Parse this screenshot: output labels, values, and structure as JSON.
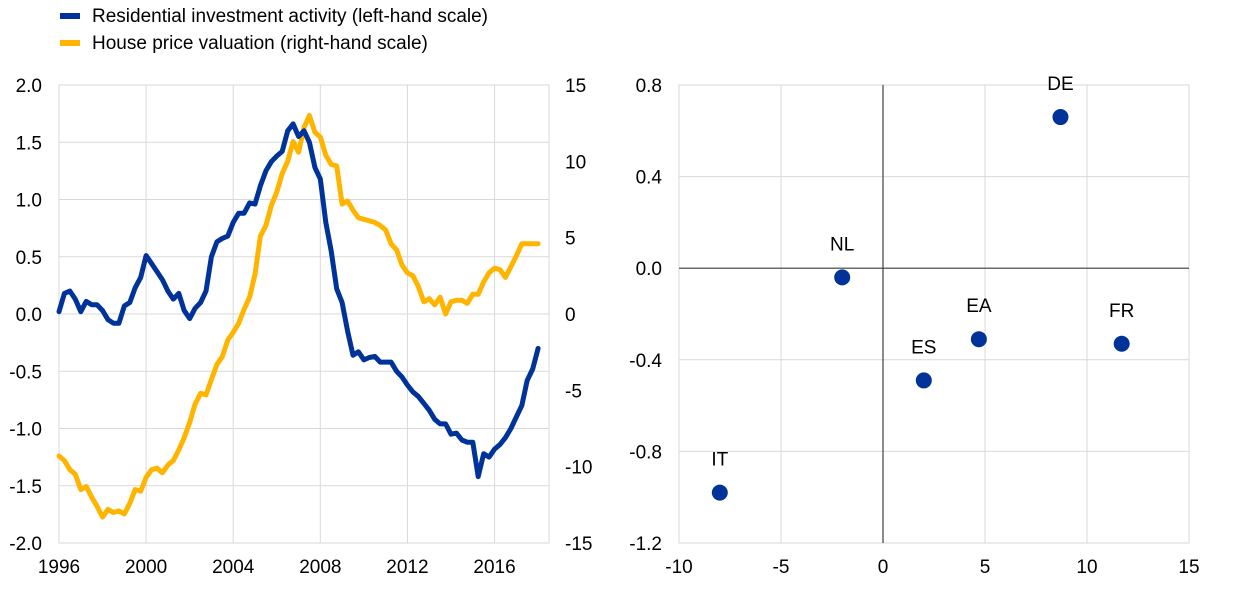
{
  "colors": {
    "blue": "#003399",
    "yellow": "#FFB400",
    "grid": "#d9d9d9",
    "axis": "#404040"
  },
  "chart_data": [
    {
      "type": "line",
      "legend_placement": "top-left",
      "grid": true,
      "legend": [
        {
          "label": "Residential investment activity (left-hand scale)",
          "color": "#003399"
        },
        {
          "label": "House price valuation (right-hand scale)",
          "color": "#FFB400"
        }
      ],
      "x_ticks": [
        "1996",
        "2000",
        "2004",
        "2008",
        "2012",
        "2016"
      ],
      "y_left_ticks": [
        "2.0",
        "1.5",
        "1.0",
        "0.5",
        "0.0",
        "-0.5",
        "-1.0",
        "-1.5",
        "-2.0"
      ],
      "y_right_ticks": [
        "15",
        "10",
        "5",
        "0",
        "-5",
        "-10",
        "-15"
      ],
      "xlim": [
        1996,
        2018.5
      ],
      "ylim_left": [
        -2.0,
        2.0
      ],
      "ylim_right": [
        -15,
        15
      ],
      "series": [
        {
          "name": "Residential investment activity (left-hand scale)",
          "axis": "left",
          "color": "#003399",
          "x": [
            1996.0,
            1996.25,
            1996.5,
            1996.75,
            1997.0,
            1997.25,
            1997.5,
            1997.75,
            1998.0,
            1998.25,
            1998.5,
            1998.75,
            1999.0,
            1999.25,
            1999.5,
            1999.75,
            2000.0,
            2000.25,
            2000.5,
            2000.75,
            2001.0,
            2001.25,
            2001.5,
            2001.75,
            2002.0,
            2002.25,
            2002.5,
            2002.75,
            2003.0,
            2003.25,
            2003.5,
            2003.75,
            2004.0,
            2004.25,
            2004.5,
            2004.75,
            2005.0,
            2005.25,
            2005.5,
            2005.75,
            2006.0,
            2006.25,
            2006.5,
            2006.75,
            2007.0,
            2007.25,
            2007.5,
            2007.75,
            2008.0,
            2008.25,
            2008.5,
            2008.75,
            2009.0,
            2009.25,
            2009.5,
            2009.75,
            2010.0,
            2010.25,
            2010.5,
            2010.75,
            2011.0,
            2011.25,
            2011.5,
            2011.75,
            2012.0,
            2012.25,
            2012.5,
            2012.75,
            2013.0,
            2013.25,
            2013.5,
            2013.75,
            2014.0,
            2014.25,
            2014.5,
            2014.75,
            2015.0,
            2015.25,
            2015.5,
            2015.75,
            2016.0,
            2016.25,
            2016.5,
            2016.75,
            2017.0,
            2017.25,
            2017.5,
            2017.75,
            2018.0
          ],
          "values": [
            0.02,
            0.18,
            0.2,
            0.13,
            0.02,
            0.11,
            0.08,
            0.08,
            0.03,
            -0.05,
            -0.08,
            -0.08,
            0.07,
            0.1,
            0.23,
            0.32,
            0.51,
            0.44,
            0.37,
            0.3,
            0.2,
            0.13,
            0.18,
            0.03,
            -0.04,
            0.05,
            0.1,
            0.2,
            0.5,
            0.63,
            0.66,
            0.68,
            0.8,
            0.88,
            0.88,
            0.97,
            0.96,
            1.12,
            1.25,
            1.33,
            1.38,
            1.42,
            1.6,
            1.66,
            1.55,
            1.6,
            1.5,
            1.28,
            1.18,
            0.8,
            0.55,
            0.22,
            0.1,
            -0.15,
            -0.36,
            -0.33,
            -0.4,
            -0.38,
            -0.37,
            -0.42,
            -0.42,
            -0.42,
            -0.5,
            -0.55,
            -0.62,
            -0.68,
            -0.72,
            -0.78,
            -0.84,
            -0.92,
            -0.96,
            -0.96,
            -1.05,
            -1.04,
            -1.1,
            -1.12,
            -1.12,
            -1.42,
            -1.22,
            -1.25,
            -1.18,
            -1.14,
            -1.08,
            -1.0,
            -0.9,
            -0.8,
            -0.58,
            -0.48,
            -0.3
          ]
        },
        {
          "name": "House price valuation (right-hand scale)",
          "axis": "right",
          "color": "#FFB400",
          "x": [
            1996.0,
            1996.25,
            1996.5,
            1996.75,
            1997.0,
            1997.25,
            1997.5,
            1997.75,
            1998.0,
            1998.25,
            1998.5,
            1998.75,
            1999.0,
            1999.25,
            1999.5,
            1999.75,
            2000.0,
            2000.25,
            2000.5,
            2000.75,
            2001.0,
            2001.25,
            2001.5,
            2001.75,
            2002.0,
            2002.25,
            2002.5,
            2002.75,
            2003.0,
            2003.25,
            2003.5,
            2003.75,
            2004.0,
            2004.25,
            2004.5,
            2004.75,
            2005.0,
            2005.25,
            2005.5,
            2005.75,
            2006.0,
            2006.25,
            2006.5,
            2006.75,
            2007.0,
            2007.25,
            2007.5,
            2007.75,
            2008.0,
            2008.25,
            2008.5,
            2008.75,
            2009.0,
            2009.25,
            2009.5,
            2009.75,
            2010.0,
            2010.25,
            2010.5,
            2010.75,
            2011.0,
            2011.25,
            2011.5,
            2011.75,
            2012.0,
            2012.25,
            2012.5,
            2012.75,
            2013.0,
            2013.25,
            2013.5,
            2013.75,
            2014.0,
            2014.25,
            2014.5,
            2014.75,
            2015.0,
            2015.25,
            2015.5,
            2015.75,
            2016.0,
            2016.25,
            2016.5,
            2016.75,
            2017.0,
            2017.25,
            2017.5,
            2017.75,
            2018.0
          ],
          "values": [
            -9.3,
            -9.6,
            -10.2,
            -10.5,
            -11.5,
            -11.3,
            -12.0,
            -12.6,
            -13.3,
            -12.8,
            -13.0,
            -12.9,
            -13.1,
            -12.4,
            -11.5,
            -11.6,
            -10.7,
            -10.2,
            -10.1,
            -10.4,
            -9.9,
            -9.6,
            -8.9,
            -8.1,
            -7.1,
            -5.9,
            -5.2,
            -5.3,
            -4.3,
            -3.3,
            -2.8,
            -1.7,
            -1.2,
            -0.6,
            0.3,
            1.1,
            2.6,
            5.1,
            5.8,
            7.1,
            8.0,
            9.2,
            10.0,
            11.3,
            10.6,
            12.2,
            13.0,
            11.9,
            11.6,
            10.4,
            9.8,
            9.7,
            7.2,
            7.4,
            6.8,
            6.3,
            6.2,
            6.1,
            6.0,
            5.8,
            5.5,
            4.6,
            4.2,
            3.2,
            2.7,
            2.5,
            1.8,
            0.8,
            1.0,
            0.6,
            1.1,
            0.0,
            0.8,
            0.9,
            0.9,
            0.7,
            1.3,
            1.3,
            2.1,
            2.7,
            3.0,
            2.9,
            2.4,
            3.1,
            3.8,
            4.6,
            4.6,
            4.6,
            4.6
          ]
        }
      ]
    },
    {
      "type": "scatter",
      "grid": true,
      "color": "#003399",
      "x_ticks": [
        "-10",
        "-5",
        "0",
        "5",
        "10",
        "15"
      ],
      "y_ticks": [
        "0.8",
        "0.4",
        "0.0",
        "-0.4",
        "-0.8",
        "-1.2"
      ],
      "xlim": [
        -10,
        15
      ],
      "ylim": [
        -1.2,
        0.8
      ],
      "points": [
        {
          "label": "DE",
          "x": 8.7,
          "y": 0.66
        },
        {
          "label": "NL",
          "x": -2.0,
          "y": -0.04
        },
        {
          "label": "EA",
          "x": 4.7,
          "y": -0.31
        },
        {
          "label": "FR",
          "x": 11.7,
          "y": -0.33
        },
        {
          "label": "ES",
          "x": 2.0,
          "y": -0.49
        },
        {
          "label": "IT",
          "x": -8.0,
          "y": -0.98
        }
      ]
    }
  ]
}
